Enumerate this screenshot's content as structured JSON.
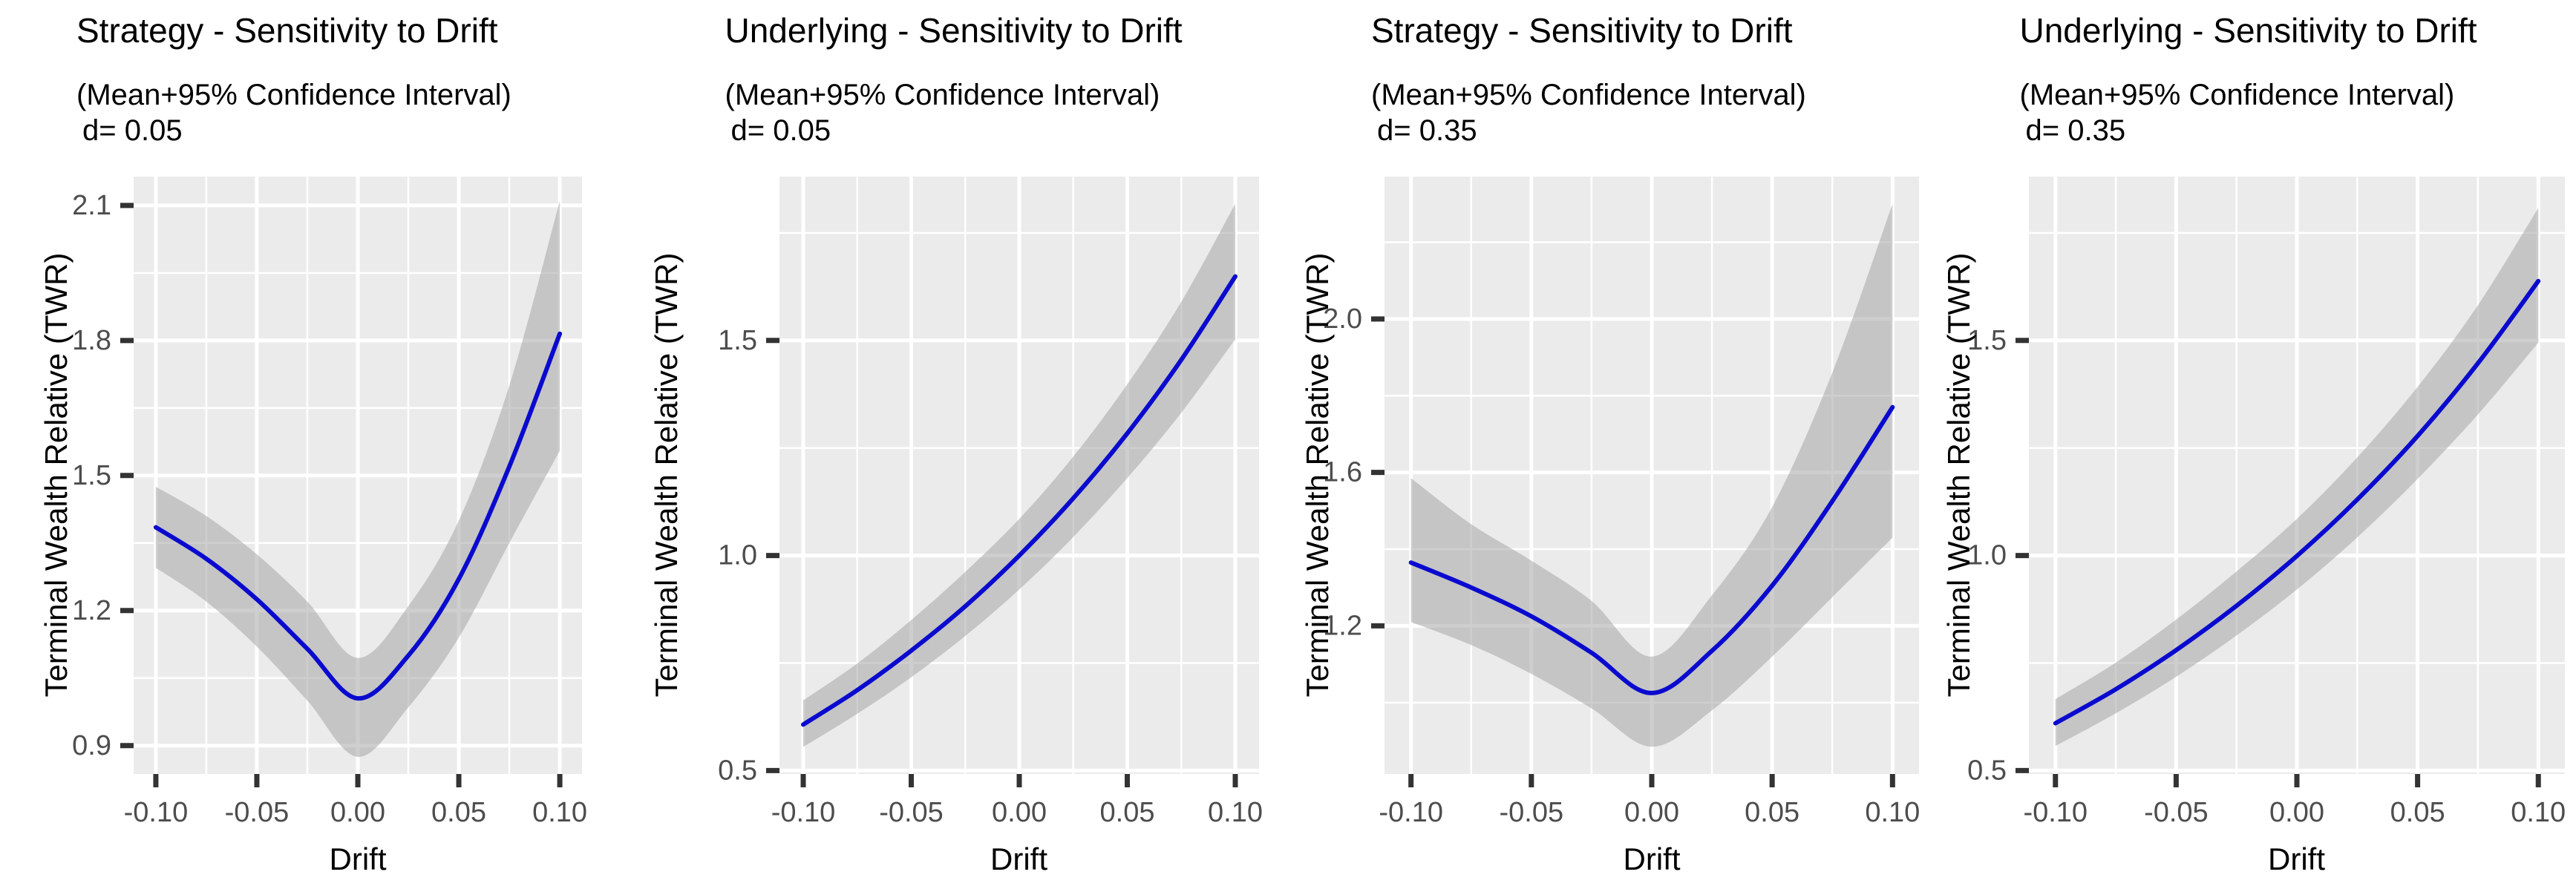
{
  "figure_background": "#ffffff",
  "colors": {
    "panel_background": "#EBEBEB",
    "grid_line": "#FFFFFF",
    "mean_line": "#0A0ACF",
    "confidence_band": "rgba(166,166,166,0.55)",
    "tick_mark": "#333333",
    "tick_label": "#4d4d4d",
    "text": "#000000"
  },
  "chart_data": [
    {
      "type": "line",
      "title": "Strategy - Sensitivity to Drift",
      "subtitle": "(Mean+95% Confidence Interval)",
      "annotation": "d= 0.05",
      "xlabel": "Drift",
      "ylabel": "Terminal Wealth Relative (TWR)",
      "grid": true,
      "legend": "none",
      "x": [
        -0.1,
        -0.075,
        -0.05,
        -0.025,
        0.0,
        0.025,
        0.05,
        0.075,
        0.1
      ],
      "series": [
        {
          "name": "mean",
          "values": [
            1.385,
            1.315,
            1.225,
            1.115,
            1.005,
            1.1,
            1.27,
            1.52,
            1.815
          ]
        },
        {
          "name": "lower95",
          "values": [
            1.295,
            1.22,
            1.12,
            1.0,
            0.875,
            0.985,
            1.14,
            1.35,
            1.555
          ]
        },
        {
          "name": "upper95",
          "values": [
            1.475,
            1.41,
            1.325,
            1.22,
            1.095,
            1.21,
            1.4,
            1.7,
            2.11
          ]
        }
      ],
      "x_ticks": [
        "-0.10",
        "-0.05",
        "0.00",
        "0.05",
        "0.10"
      ],
      "x_tick_values": [
        -0.1,
        -0.05,
        0.0,
        0.05,
        0.1
      ],
      "x_minor": [
        -0.075,
        -0.025,
        0.025,
        0.075
      ],
      "y_ticks": [
        {
          "v": 0.9,
          "label": "0.9"
        },
        {
          "v": 1.2,
          "label": "1.2"
        },
        {
          "v": 1.5,
          "label": "1.5"
        },
        {
          "v": 1.8,
          "label": "1.8"
        },
        {
          "v": 2.1,
          "label": "2.1"
        }
      ],
      "y_minor": [
        1.05,
        1.35,
        1.65,
        1.95
      ],
      "xlim": [
        -0.111,
        0.111
      ],
      "ylim": [
        0.837,
        2.164
      ]
    },
    {
      "type": "line",
      "title": "Underlying - Sensitivity to Drift",
      "subtitle": "(Mean+95% Confidence Interval)",
      "annotation": "d= 0.05",
      "xlabel": "Drift",
      "ylabel": "Terminal Wealth Relative (TWR)",
      "grid": true,
      "legend": "none",
      "x": [
        -0.1,
        -0.075,
        -0.05,
        -0.025,
        0.0,
        0.025,
        0.05,
        0.075,
        0.1
      ],
      "series": [
        {
          "name": "mean",
          "values": [
            0.607,
            0.687,
            0.779,
            0.882,
            1.0,
            1.133,
            1.284,
            1.455,
            1.649
          ]
        },
        {
          "name": "lower95",
          "values": [
            0.555,
            0.632,
            0.717,
            0.813,
            0.921,
            1.043,
            1.18,
            1.332,
            1.503
          ]
        },
        {
          "name": "upper95",
          "values": [
            0.663,
            0.749,
            0.85,
            0.962,
            1.085,
            1.23,
            1.398,
            1.59,
            1.818
          ]
        }
      ],
      "x_ticks": [
        "-0.10",
        "-0.05",
        "0.00",
        "0.05",
        "0.10"
      ],
      "x_tick_values": [
        -0.1,
        -0.05,
        0.0,
        0.05,
        0.1
      ],
      "x_minor": [
        -0.075,
        -0.025,
        0.025,
        0.075
      ],
      "y_ticks": [
        {
          "v": 0.5,
          "label": "0.5"
        },
        {
          "v": 1.0,
          "label": "1.0"
        },
        {
          "v": 1.5,
          "label": "1.5"
        }
      ],
      "y_minor": [
        0.75,
        1.25,
        1.75
      ],
      "xlim": [
        -0.111,
        0.111
      ],
      "ylim": [
        0.492,
        1.881
      ]
    },
    {
      "type": "line",
      "title": "Strategy - Sensitivity to Drift",
      "subtitle": "(Mean+95% Confidence Interval)",
      "annotation": "d= 0.35",
      "xlabel": "Drift",
      "ylabel": "Terminal Wealth Relative (TWR)",
      "grid": true,
      "legend": "none",
      "x": [
        -0.1,
        -0.075,
        -0.05,
        -0.025,
        0.0,
        0.025,
        0.05,
        0.075,
        0.1
      ],
      "series": [
        {
          "name": "mean",
          "values": [
            1.365,
            1.3,
            1.225,
            1.13,
            1.025,
            1.135,
            1.305,
            1.525,
            1.77
          ]
        },
        {
          "name": "lower95",
          "values": [
            1.21,
            1.15,
            1.075,
            0.985,
            0.885,
            0.98,
            1.12,
            1.275,
            1.43
          ]
        },
        {
          "name": "upper95",
          "values": [
            1.585,
            1.465,
            1.37,
            1.265,
            1.12,
            1.28,
            1.51,
            1.86,
            2.3
          ]
        }
      ],
      "x_ticks": [
        "-0.10",
        "-0.05",
        "0.00",
        "0.05",
        "0.10"
      ],
      "x_tick_values": [
        -0.1,
        -0.05,
        0.0,
        0.05,
        0.1
      ],
      "x_minor": [
        -0.075,
        -0.025,
        0.025,
        0.075
      ],
      "y_ticks": [
        {
          "v": 1.2,
          "label": "1.2"
        },
        {
          "v": 1.6,
          "label": "1.6"
        },
        {
          "v": 2.0,
          "label": "2.0"
        }
      ],
      "y_minor": [
        1.0,
        1.4,
        1.8,
        2.2
      ],
      "xlim": [
        -0.111,
        0.111
      ],
      "ylim": [
        0.814,
        2.371
      ]
    },
    {
      "type": "line",
      "title": "Underlying - Sensitivity to Drift",
      "subtitle": "(Mean+95% Confidence Interval)",
      "annotation": "d= 0.35",
      "xlabel": "Drift",
      "ylabel": "Terminal Wealth Relative (TWR)",
      "grid": true,
      "legend": "none",
      "x": [
        -0.1,
        -0.075,
        -0.05,
        -0.025,
        0.0,
        0.025,
        0.05,
        0.075,
        0.1
      ],
      "series": [
        {
          "name": "mean",
          "values": [
            0.61,
            0.689,
            0.78,
            0.883,
            0.999,
            1.13,
            1.278,
            1.447,
            1.638
          ]
        },
        {
          "name": "lower95",
          "values": [
            0.557,
            0.633,
            0.718,
            0.814,
            0.921,
            1.042,
            1.178,
            1.328,
            1.495
          ]
        },
        {
          "name": "upper95",
          "values": [
            0.666,
            0.751,
            0.851,
            0.963,
            1.085,
            1.228,
            1.392,
            1.582,
            1.808
          ]
        }
      ],
      "x_ticks": [
        "-0.10",
        "-0.05",
        "0.00",
        "0.05",
        "0.10"
      ],
      "x_tick_values": [
        -0.1,
        -0.05,
        0.0,
        0.05,
        0.1
      ],
      "x_minor": [
        -0.075,
        -0.025,
        0.025,
        0.075
      ],
      "y_ticks": [
        {
          "v": 0.5,
          "label": "0.5"
        },
        {
          "v": 1.0,
          "label": "1.0"
        },
        {
          "v": 1.5,
          "label": "1.5"
        }
      ],
      "y_minor": [
        0.75,
        1.25,
        1.75
      ],
      "xlim": [
        -0.111,
        0.111
      ],
      "ylim": [
        0.492,
        1.881
      ]
    }
  ]
}
